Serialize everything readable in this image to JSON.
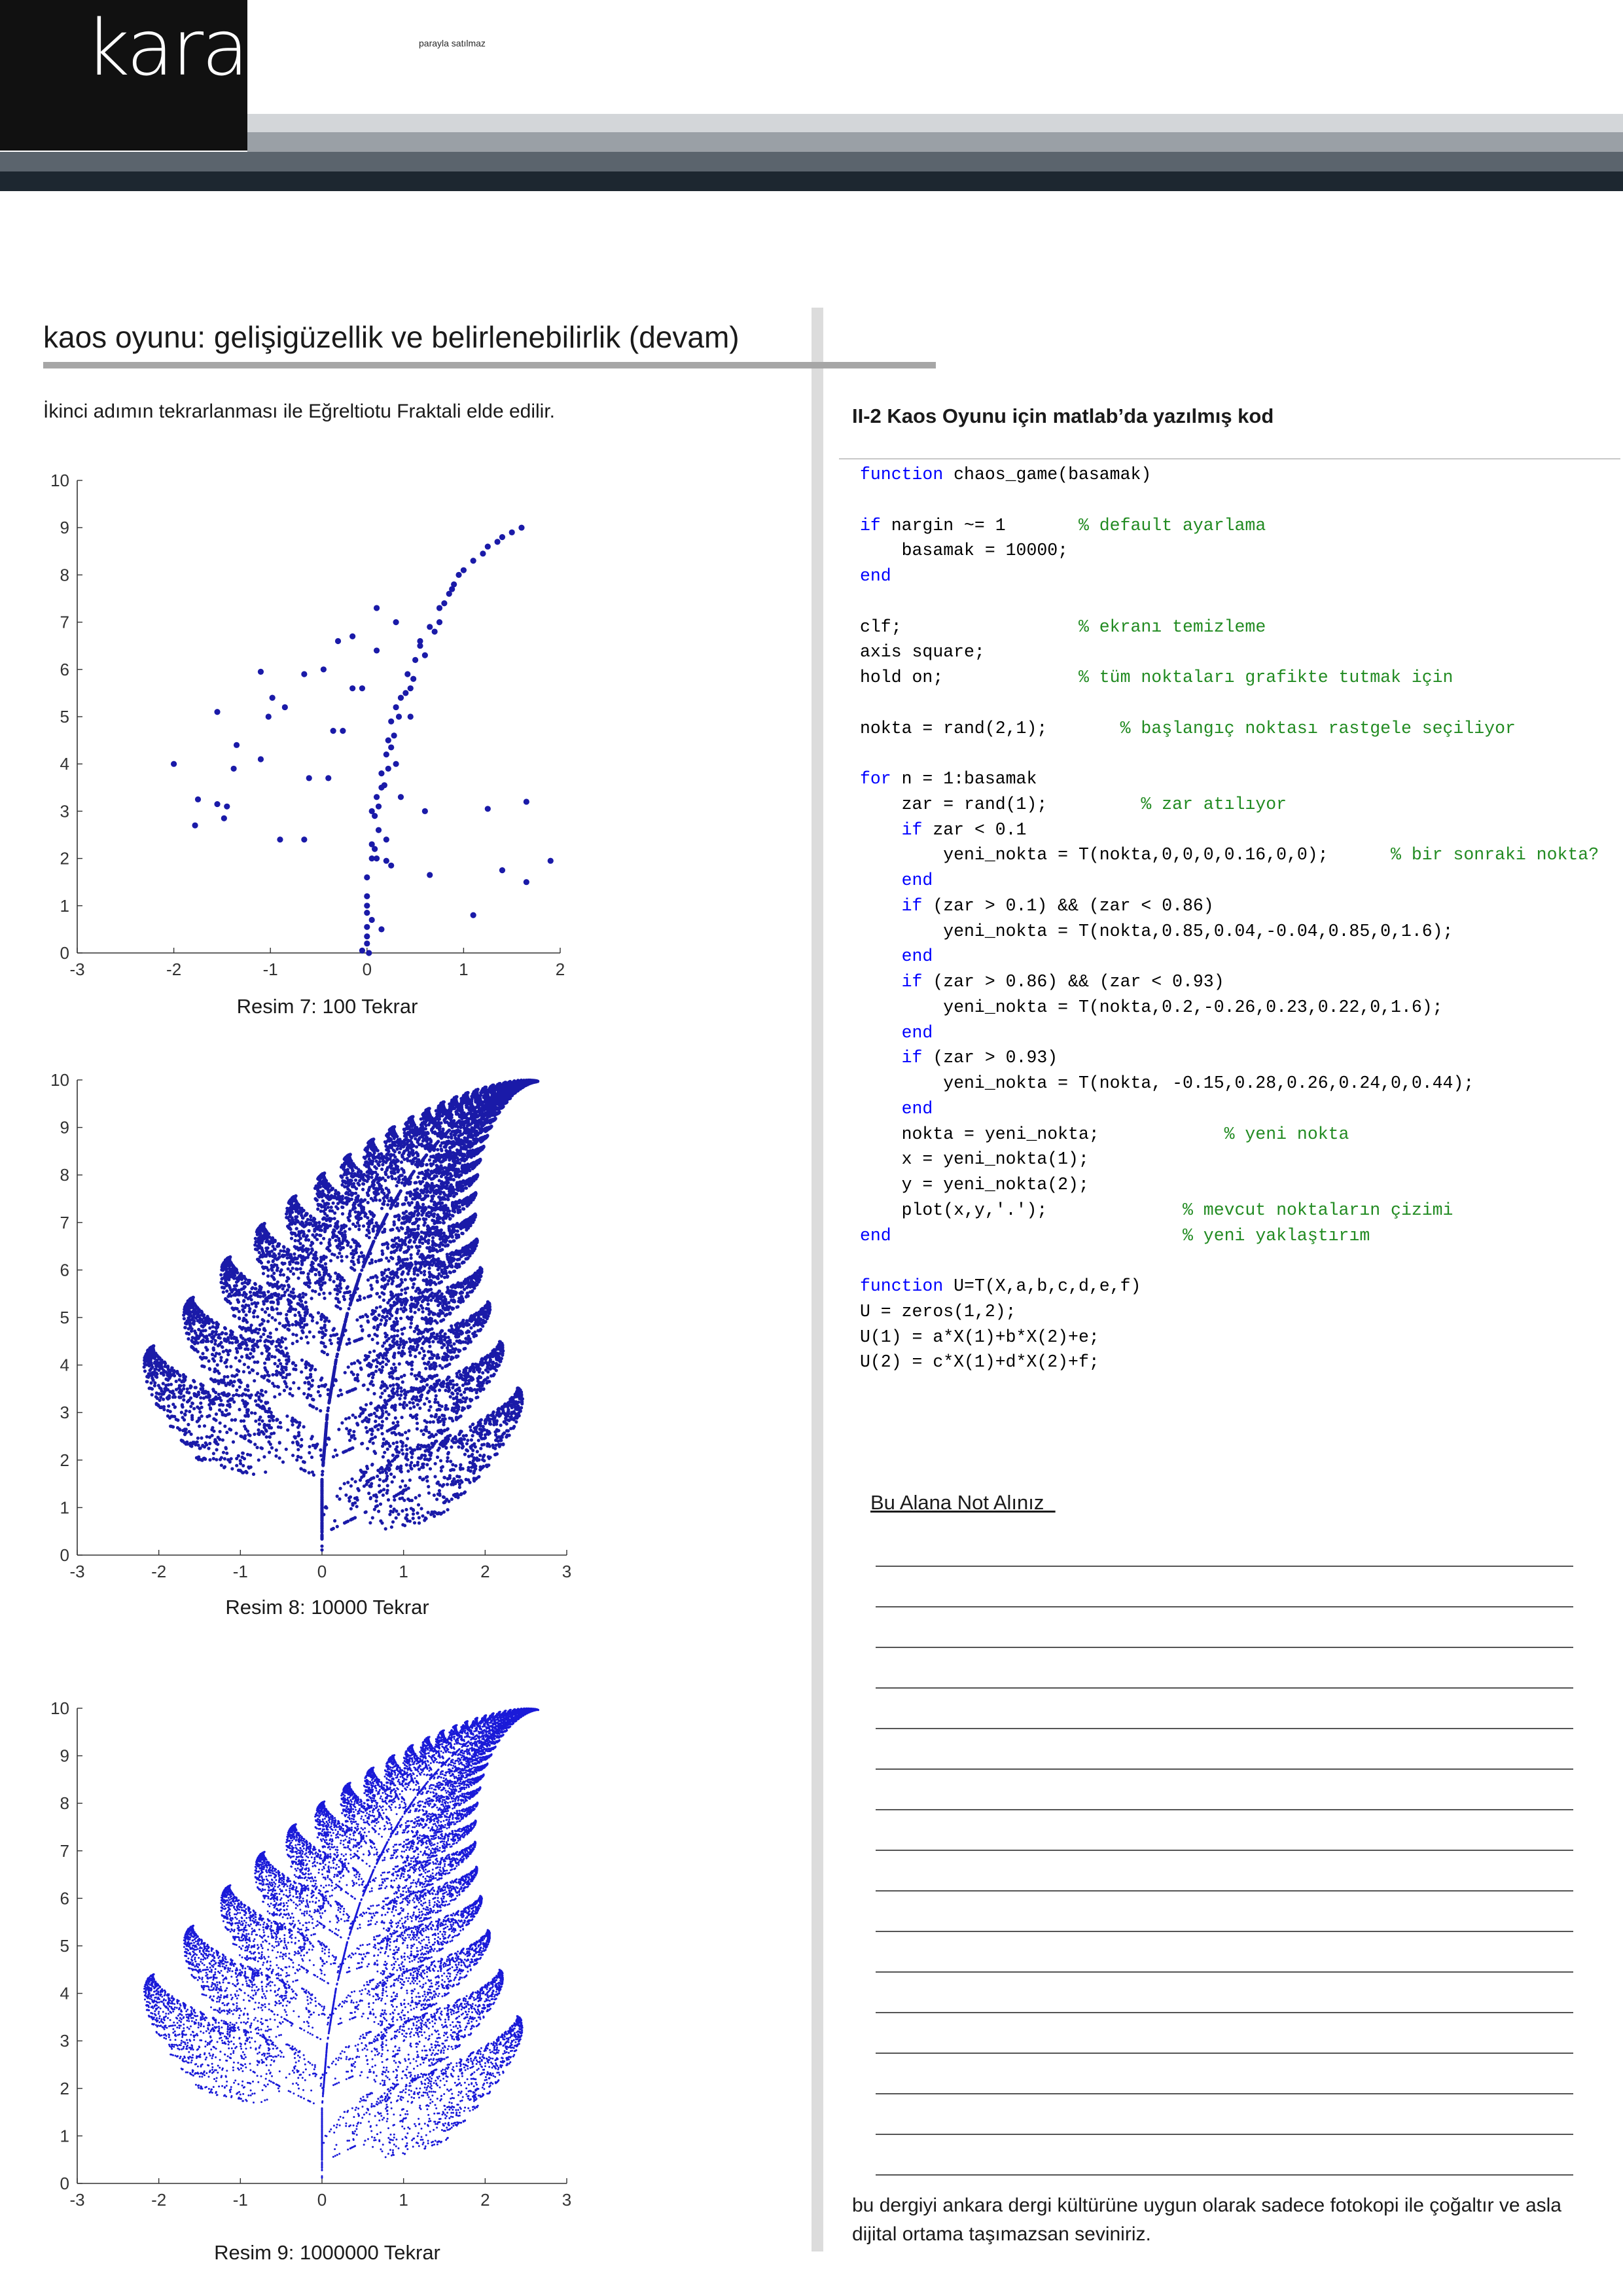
{
  "header": {
    "brand": "karaciğer",
    "tagline": "parayla satılmaz"
  },
  "left": {
    "title": "kaos oyunu: gelişigüzellik ve belirlenebilirlik (devam)",
    "intro": "İkinci adımın tekrarlanması ile Eğreltiotu Fraktali elde edilir.",
    "captions": [
      "Resim 7: 100 Tekrar",
      "Resim 8: 10000 Tekrar",
      "Resim 9: 1000000 Tekrar"
    ]
  },
  "right": {
    "code_heading": "II-2 Kaos Oyunu için matlab’da yazılmış kod",
    "code_lines": [
      [
        {
          "t": "function",
          "k": "kw"
        },
        {
          "t": " chaos_game(basamak)"
        }
      ],
      [],
      [
        {
          "t": "if",
          "k": "kw"
        },
        {
          "t": " nargin ~= 1       "
        },
        {
          "t": "% default ayarlama",
          "k": "cm"
        }
      ],
      [
        {
          "t": "    basamak = 10000;"
        }
      ],
      [
        {
          "t": "end",
          "k": "kw"
        }
      ],
      [],
      [
        {
          "t": "clf;                 "
        },
        {
          "t": "% ekranı temizleme",
          "k": "cm"
        }
      ],
      [
        {
          "t": "axis square;"
        }
      ],
      [
        {
          "t": "hold on;             "
        },
        {
          "t": "% tüm noktaları grafikte tutmak için",
          "k": "cm"
        }
      ],
      [],
      [
        {
          "t": "nokta = rand(2,1);       "
        },
        {
          "t": "% başlangıç noktası rastgele seçiliyor",
          "k": "cm"
        }
      ],
      [],
      [
        {
          "t": "for",
          "k": "kw"
        },
        {
          "t": " n = 1:basamak"
        }
      ],
      [
        {
          "t": "    zar = rand(1);         "
        },
        {
          "t": "% zar atılıyor",
          "k": "cm"
        }
      ],
      [
        {
          "t": "    "
        },
        {
          "t": "if",
          "k": "kw"
        },
        {
          "t": " zar < 0.1"
        }
      ],
      [
        {
          "t": "        yeni_nokta = T(nokta,0,0,0,0.16,0,0);      "
        },
        {
          "t": "% bir sonraki nokta?",
          "k": "cm"
        }
      ],
      [
        {
          "t": "    "
        },
        {
          "t": "end",
          "k": "kw"
        }
      ],
      [
        {
          "t": "    "
        },
        {
          "t": "if",
          "k": "kw"
        },
        {
          "t": " (zar > 0.1) && (zar < 0.86)"
        }
      ],
      [
        {
          "t": "        yeni_nokta = T(nokta,0.85,0.04,-0.04,0.85,0,1.6);"
        }
      ],
      [
        {
          "t": "    "
        },
        {
          "t": "end",
          "k": "kw"
        }
      ],
      [
        {
          "t": "    "
        },
        {
          "t": "if",
          "k": "kw"
        },
        {
          "t": " (zar > 0.86) && (zar < 0.93)"
        }
      ],
      [
        {
          "t": "        yeni_nokta = T(nokta,0.2,-0.26,0.23,0.22,0,1.6);"
        }
      ],
      [
        {
          "t": "    "
        },
        {
          "t": "end",
          "k": "kw"
        }
      ],
      [
        {
          "t": "    "
        },
        {
          "t": "if",
          "k": "kw"
        },
        {
          "t": " (zar > 0.93)"
        }
      ],
      [
        {
          "t": "        yeni_nokta = T(nokta, -0.15,0.28,0.26,0.24,0,0.44);"
        }
      ],
      [
        {
          "t": "    "
        },
        {
          "t": "end",
          "k": "kw"
        }
      ],
      [
        {
          "t": "    nokta = yeni_nokta;            "
        },
        {
          "t": "% yeni nokta",
          "k": "cm"
        }
      ],
      [
        {
          "t": "    x = yeni_nokta(1);"
        }
      ],
      [
        {
          "t": "    y = yeni_nokta(2);"
        }
      ],
      [
        {
          "t": "    plot(x,y,'.');             "
        },
        {
          "t": "% mevcut noktaların çizimi",
          "k": "cm"
        }
      ],
      [
        {
          "t": "end",
          "k": "kw"
        },
        {
          "t": "                            "
        },
        {
          "t": "% yeni yaklaştırım",
          "k": "cm"
        }
      ],
      [],
      [
        {
          "t": "function",
          "k": "kw"
        },
        {
          "t": " U=T(X,a,b,c,d,e,f)"
        }
      ],
      [
        {
          "t": "U = zeros(1,2);"
        }
      ],
      [
        {
          "t": "U(1) = a*X(1)+b*X(2)+e;"
        }
      ],
      [
        {
          "t": "U(2) = c*X(1)+d*X(2)+f;"
        }
      ]
    ],
    "notes_title": "Bu Alana Not Alınız  ",
    "note_line_count": 16,
    "footer": "bu dergiyi ankara dergi kültürüne uygun olarak sadece fotokopi ile çoğaltır ve asla dijital ortama taşımazsan seviniriz."
  },
  "chart_data": [
    {
      "type": "scatter",
      "iterations": 100,
      "xlim": [
        -3,
        2
      ],
      "ylim": [
        0,
        10
      ],
      "xticks": [
        -3,
        -2,
        -1,
        0,
        1,
        2
      ],
      "yticks": [
        0,
        1,
        2,
        3,
        4,
        5,
        6,
        7,
        8,
        9,
        10
      ],
      "color": "#1a1aa8",
      "points": [
        [
          -2.0,
          4.0
        ],
        [
          -1.75,
          3.25
        ],
        [
          -1.78,
          2.7
        ],
        [
          -1.55,
          3.15
        ],
        [
          -1.45,
          3.1
        ],
        [
          -1.48,
          2.85
        ],
        [
          -1.55,
          5.1
        ],
        [
          -1.35,
          4.4
        ],
        [
          -1.38,
          3.9
        ],
        [
          -1.1,
          4.1
        ],
        [
          -1.1,
          5.95
        ],
        [
          -1.02,
          5.0
        ],
        [
          -0.98,
          5.4
        ],
        [
          -0.85,
          5.2
        ],
        [
          -0.9,
          2.4
        ],
        [
          -0.65,
          5.9
        ],
        [
          -0.65,
          2.4
        ],
        [
          -0.6,
          3.7
        ],
        [
          -0.45,
          6.0
        ],
        [
          -0.4,
          3.7
        ],
        [
          -0.35,
          4.7
        ],
        [
          -0.3,
          6.6
        ],
        [
          -0.25,
          4.7
        ],
        [
          -0.15,
          6.7
        ],
        [
          -0.15,
          5.6
        ],
        [
          -0.05,
          5.6
        ],
        [
          -0.05,
          0.05
        ],
        [
          0.0,
          0.2
        ],
        [
          0.0,
          0.35
        ],
        [
          0.0,
          0.55
        ],
        [
          0.0,
          0.85
        ],
        [
          0.0,
          1.2
        ],
        [
          0.0,
          1.6
        ],
        [
          0.05,
          2.0
        ],
        [
          0.05,
          2.3
        ],
        [
          0.08,
          2.9
        ],
        [
          0.1,
          3.3
        ],
        [
          0.15,
          3.5
        ],
        [
          0.15,
          3.8
        ],
        [
          0.2,
          4.2
        ],
        [
          0.22,
          4.5
        ],
        [
          0.25,
          4.9
        ],
        [
          0.3,
          5.2
        ],
        [
          0.35,
          5.4
        ],
        [
          0.42,
          5.9
        ],
        [
          0.5,
          6.2
        ],
        [
          0.55,
          6.6
        ],
        [
          0.65,
          6.9
        ],
        [
          0.75,
          7.3
        ],
        [
          0.85,
          7.6
        ],
        [
          0.95,
          8.0
        ],
        [
          1.1,
          8.3
        ],
        [
          1.25,
          8.6
        ],
        [
          1.4,
          8.8
        ],
        [
          1.6,
          9.0
        ],
        [
          0.1,
          6.4
        ],
        [
          0.1,
          7.3
        ],
        [
          0.3,
          7.0
        ],
        [
          0.35,
          3.3
        ],
        [
          0.6,
          3.0
        ],
        [
          0.1,
          2.0
        ],
        [
          0.2,
          1.95
        ],
        [
          0.25,
          1.85
        ],
        [
          0.15,
          0.5
        ],
        [
          0.65,
          1.65
        ],
        [
          1.1,
          0.8
        ],
        [
          1.25,
          3.05
        ],
        [
          1.4,
          1.75
        ],
        [
          1.65,
          3.2
        ],
        [
          1.9,
          1.95
        ],
        [
          1.65,
          1.5
        ],
        [
          0.05,
          0.7
        ],
        [
          0.2,
          2.4
        ],
        [
          0.3,
          4.0
        ],
        [
          0.45,
          5.6
        ],
        [
          0.6,
          6.3
        ],
        [
          0.7,
          6.8
        ],
        [
          0.9,
          7.8
        ],
        [
          1.0,
          8.1
        ],
        [
          1.2,
          8.45
        ],
        [
          1.35,
          8.7
        ],
        [
          1.5,
          8.9
        ],
        [
          0.05,
          3.0
        ],
        [
          0.12,
          3.1
        ],
        [
          0.18,
          3.55
        ],
        [
          0.22,
          3.9
        ],
        [
          0.28,
          4.6
        ],
        [
          0.4,
          5.5
        ],
        [
          0.45,
          5.0
        ],
        [
          0.55,
          6.5
        ],
        [
          0.75,
          7.0
        ],
        [
          0.8,
          7.4
        ],
        [
          0.0,
          1.0
        ],
        [
          0.02,
          0.0
        ],
        [
          0.08,
          2.2
        ],
        [
          0.12,
          2.6
        ],
        [
          0.25,
          4.35
        ],
        [
          0.33,
          5.0
        ],
        [
          0.48,
          5.8
        ],
        [
          0.88,
          7.7
        ]
      ]
    },
    {
      "type": "scatter",
      "iterations": 10000,
      "xlim": [
        -3,
        3
      ],
      "ylim": [
        0,
        10
      ],
      "xticks": [
        -3,
        -2,
        -1,
        0,
        1,
        2,
        3
      ],
      "yticks": [
        0,
        1,
        2,
        3,
        4,
        5,
        6,
        7,
        8,
        9,
        10
      ],
      "color": "#1a1aa8"
    },
    {
      "type": "scatter",
      "iterations": 1000000,
      "xlim": [
        -3,
        3
      ],
      "ylim": [
        0,
        10
      ],
      "xticks": [
        -3,
        -2,
        -1,
        0,
        1,
        2,
        3
      ],
      "yticks": [
        0,
        1,
        2,
        3,
        4,
        5,
        6,
        7,
        8,
        9,
        10
      ],
      "color": "#1a1ad8"
    }
  ]
}
